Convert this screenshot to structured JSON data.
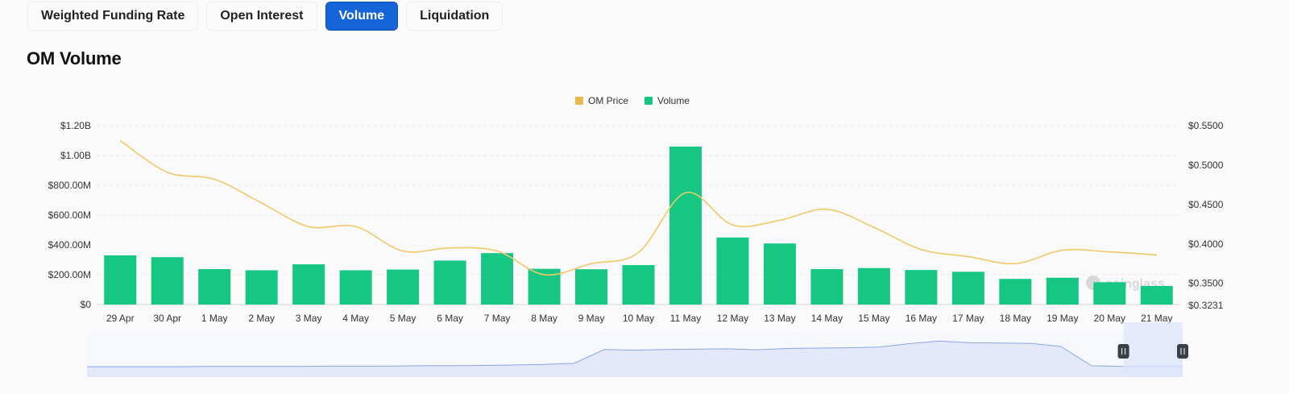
{
  "tabs": [
    {
      "label": "Weighted Funding Rate",
      "active": false
    },
    {
      "label": "Open Interest",
      "active": false
    },
    {
      "label": "Volume",
      "active": true
    },
    {
      "label": "Liquidation",
      "active": false
    }
  ],
  "page_title": "OM Volume",
  "colors": {
    "accent": "#1565d8",
    "volume_bar": "#16c784",
    "price_line": "#f0c868",
    "legend_price": "#e8b84a",
    "navigator_line": "#8aa6e8",
    "navigator_fill": "#e3e9fb",
    "navigator_selection": "#dfe6fb"
  },
  "watermark": "coinglass",
  "chart_data": {
    "type": "bar",
    "legend": [
      "OM Price",
      "Volume"
    ],
    "legend_position": "top-center",
    "grid": true,
    "categories": [
      "29 Apr",
      "30 Apr",
      "1 May",
      "2 May",
      "3 May",
      "4 May",
      "5 May",
      "6 May",
      "7 May",
      "8 May",
      "9 May",
      "10 May",
      "11 May",
      "12 May",
      "13 May",
      "14 May",
      "15 May",
      "16 May",
      "17 May",
      "18 May",
      "19 May",
      "20 May",
      "21 May"
    ],
    "series": [
      {
        "name": "Volume",
        "type": "bar",
        "axis": "left",
        "values": [
          330000000,
          318000000,
          238000000,
          230000000,
          270000000,
          230000000,
          235000000,
          295000000,
          345000000,
          240000000,
          237000000,
          265000000,
          1060000000,
          450000000,
          410000000,
          238000000,
          245000000,
          232000000,
          220000000,
          172000000,
          180000000,
          150000000,
          125000000
        ]
      },
      {
        "name": "OM Price",
        "type": "line",
        "axis": "right",
        "values": [
          0.531,
          0.491,
          0.482,
          0.452,
          0.422,
          0.422,
          0.391,
          0.395,
          0.391,
          0.361,
          0.375,
          0.389,
          0.465,
          0.424,
          0.43,
          0.444,
          0.421,
          0.393,
          0.384,
          0.375,
          0.392,
          0.39,
          0.386
        ]
      }
    ],
    "y_left": {
      "ticks": [
        "$0",
        "$200.00M",
        "$400.00M",
        "$600.00M",
        "$800.00M",
        "$1.00B",
        "$1.20B"
      ],
      "ylim": [
        0,
        1200000000
      ]
    },
    "y_right": {
      "ticks": [
        "$0.3231",
        "$0.3500",
        "$0.4000",
        "$0.4500",
        "$0.5000",
        "$0.5500"
      ],
      "ylim": [
        0.3231,
        0.55
      ]
    },
    "navigator": {
      "values": [
        0.02,
        0.02,
        0.02,
        0.02,
        0.03,
        0.03,
        0.03,
        0.03,
        0.04,
        0.04,
        0.04,
        0.05,
        0.05,
        0.06,
        0.07,
        0.09,
        0.12,
        0.53,
        0.51,
        0.53,
        0.54,
        0.55,
        0.52,
        0.56,
        0.57,
        0.58,
        0.6,
        0.7,
        0.78,
        0.73,
        0.72,
        0.71,
        0.62,
        0.05,
        0.03,
        0.03,
        0.03
      ],
      "selection": [
        0.946,
        1.0
      ]
    }
  }
}
